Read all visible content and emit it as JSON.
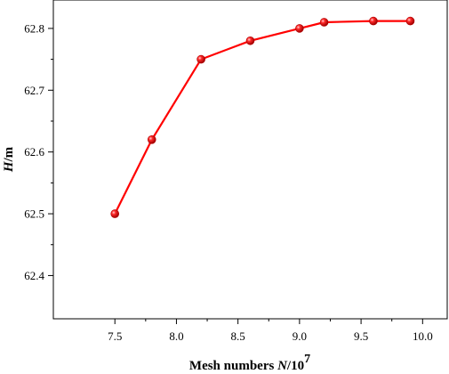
{
  "chart_data": {
    "type": "line",
    "title": "",
    "xlabel": {
      "prefix": "Mesh numbers ",
      "var": "N",
      "suffix": "/10",
      "exponent": "7"
    },
    "ylabel": {
      "var": "H",
      "suffix": "/m"
    },
    "x_ticks": [
      "7.5",
      "8.0",
      "8.5",
      "9.0",
      "9.5",
      "10.0"
    ],
    "y_ticks": [
      "62.4",
      "62.5",
      "62.6",
      "62.7",
      "62.8"
    ],
    "xlim": [
      7.0,
      10.2
    ],
    "ylim": [
      62.33,
      62.846
    ],
    "grid": false,
    "series": [
      {
        "color": "#ff0000",
        "marker": "sphere",
        "x": [
          7.5,
          7.8,
          8.2,
          8.6,
          9.0,
          9.2,
          9.6,
          9.9
        ],
        "y": [
          62.5,
          62.62,
          62.75,
          62.78,
          62.8,
          62.81,
          62.812,
          62.812
        ]
      }
    ]
  }
}
